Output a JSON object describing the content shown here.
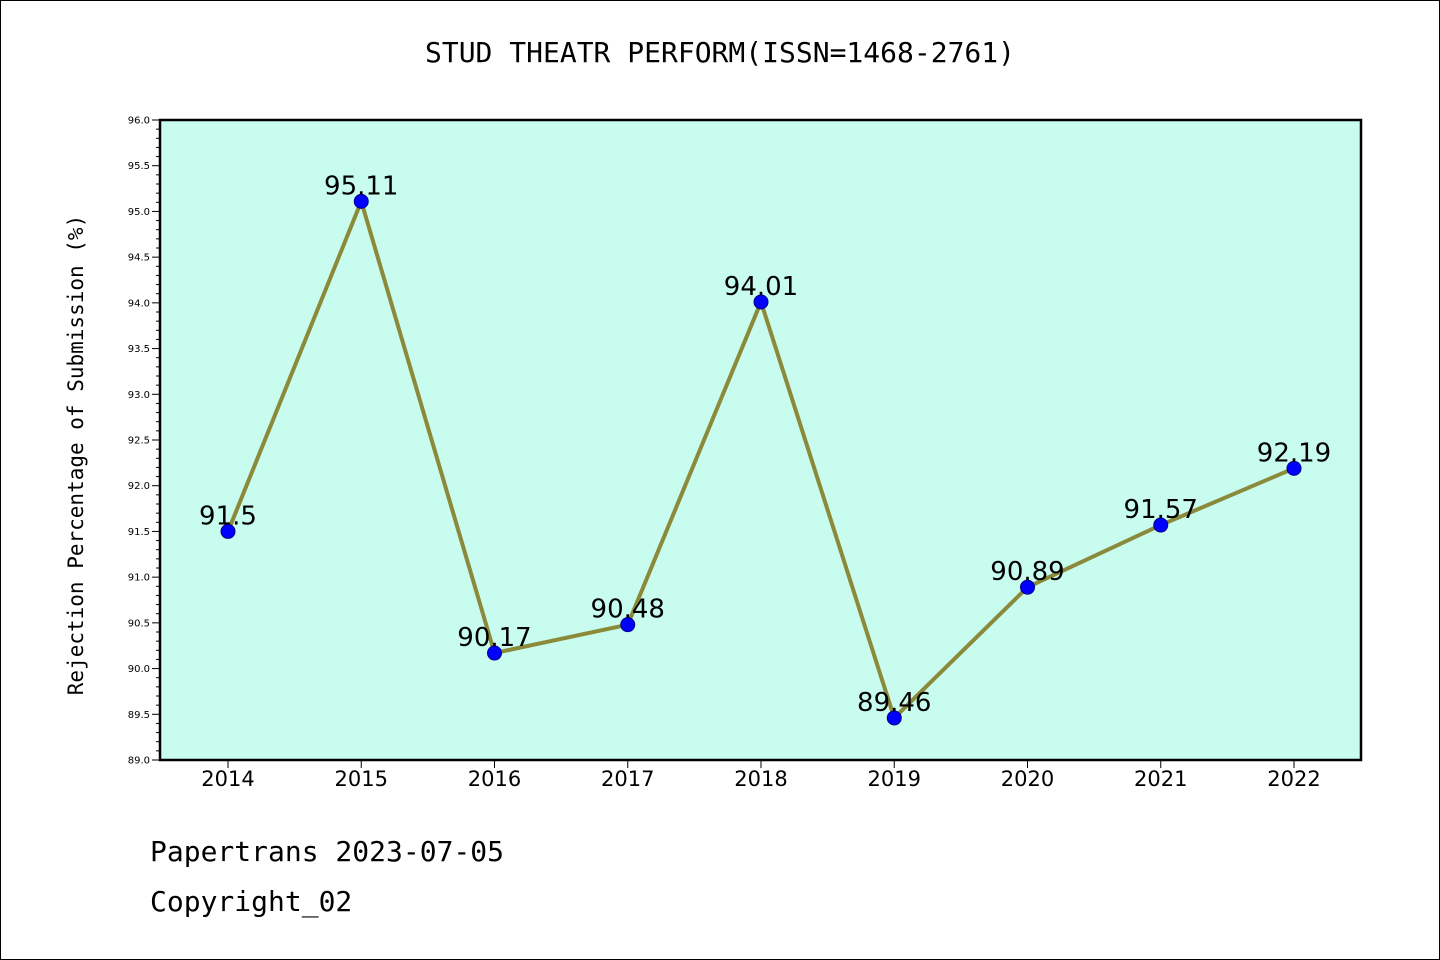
{
  "chart_data": {
    "type": "line",
    "title": "STUD THEATR PERFORM(ISSN=1468-2761)",
    "xlabel": "",
    "ylabel": "Rejection Percentage of Submission (%)",
    "categories": [
      "2014",
      "2015",
      "2016",
      "2017",
      "2018",
      "2019",
      "2020",
      "2021",
      "2022"
    ],
    "series": [
      {
        "values": [
          91.5,
          95.11,
          90.17,
          90.48,
          94.01,
          89.46,
          90.89,
          91.57,
          92.19
        ],
        "labels": [
          "91.5",
          "95.11",
          "90.17",
          "90.48",
          "94.01",
          "89.46",
          "90.89",
          "91.57",
          "92.19"
        ]
      }
    ],
    "ylim": [
      89.0,
      96.0
    ],
    "yticks": [
      "89.0",
      "89.5",
      "90.0",
      "90.5",
      "91.0",
      "91.5",
      "92.0",
      "92.5",
      "93.0",
      "93.5",
      "94.0",
      "94.5",
      "95.0",
      "95.5",
      "96.0"
    ],
    "grid": false,
    "colors": {
      "plot_background": "#c8fcee",
      "line": "#8a8a3a",
      "marker": "#0000ff"
    }
  },
  "footer": {
    "line1": "Papertrans 2023-07-05",
    "line2": "Copyright_02"
  }
}
